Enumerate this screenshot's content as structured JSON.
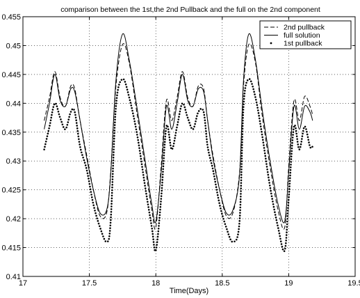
{
  "chart_data": {
    "type": "line",
    "title": "comparison between the 1st,the 2nd Pullback and the full on the 2nd component",
    "xlabel": "Time(Days)",
    "ylabel": "",
    "xlim": [
      17,
      19.5
    ],
    "ylim": [
      0.41,
      0.455
    ],
    "xticks": [
      "17",
      "17.5",
      "18",
      "18.5",
      "19",
      "19.5"
    ],
    "yticks": [
      "0.41",
      "0.415",
      "0.42",
      "0.425",
      "0.43",
      "0.435",
      "0.44",
      "0.445",
      "0.45",
      "0.455"
    ],
    "grid": true,
    "legend_position": "top-right",
    "series": [
      {
        "name": "2nd pullback",
        "style": "dashed",
        "x": [
          17.16,
          17.2,
          17.24,
          17.28,
          17.32,
          17.36,
          17.39,
          17.43,
          17.48,
          17.53,
          17.58,
          17.63,
          17.66,
          17.7,
          17.75,
          17.8,
          17.86,
          17.92,
          17.97,
          18.0,
          18.04,
          18.08,
          18.12,
          18.16,
          18.2,
          18.24,
          18.28,
          18.32,
          18.36,
          18.39,
          18.43,
          18.48,
          18.53,
          18.58,
          18.63,
          18.66,
          18.7,
          18.75,
          18.8,
          18.86,
          18.92,
          18.97,
          19.0,
          19.04,
          19.08,
          19.12,
          19.16,
          19.18
        ],
        "y": [
          0.437,
          0.441,
          0.4455,
          0.441,
          0.4395,
          0.443,
          0.4425,
          0.437,
          0.431,
          0.425,
          0.4205,
          0.421,
          0.428,
          0.443,
          0.4502,
          0.447,
          0.438,
          0.429,
          0.4215,
          0.4185,
          0.429,
          0.4405,
          0.437,
          0.441,
          0.4455,
          0.441,
          0.4395,
          0.443,
          0.4425,
          0.437,
          0.431,
          0.425,
          0.4205,
          0.421,
          0.428,
          0.443,
          0.4502,
          0.447,
          0.438,
          0.429,
          0.4215,
          0.4185,
          0.429,
          0.4405,
          0.437,
          0.4412,
          0.4395,
          0.438
        ]
      },
      {
        "name": "full solution",
        "style": "solid",
        "x": [
          17.16,
          17.2,
          17.24,
          17.28,
          17.32,
          17.36,
          17.39,
          17.43,
          17.48,
          17.53,
          17.58,
          17.63,
          17.66,
          17.7,
          17.75,
          17.8,
          17.86,
          17.92,
          17.97,
          18.0,
          18.04,
          18.08,
          18.12,
          18.16,
          18.2,
          18.24,
          18.28,
          18.32,
          18.36,
          18.39,
          18.43,
          18.48,
          18.53,
          18.58,
          18.63,
          18.66,
          18.7,
          18.75,
          18.8,
          18.86,
          18.92,
          18.97,
          19.0,
          19.04,
          19.08,
          19.12,
          19.16,
          19.18
        ],
        "y": [
          0.4355,
          0.44,
          0.445,
          0.4405,
          0.4395,
          0.4425,
          0.442,
          0.437,
          0.4305,
          0.425,
          0.421,
          0.4215,
          0.4275,
          0.444,
          0.452,
          0.4475,
          0.439,
          0.43,
          0.4225,
          0.4195,
          0.428,
          0.4395,
          0.4355,
          0.44,
          0.445,
          0.4405,
          0.4395,
          0.4425,
          0.442,
          0.437,
          0.4305,
          0.425,
          0.421,
          0.4215,
          0.4275,
          0.444,
          0.452,
          0.4475,
          0.439,
          0.43,
          0.4225,
          0.4195,
          0.428,
          0.4395,
          0.4355,
          0.4395,
          0.4385,
          0.437
        ]
      },
      {
        "name": "1st pullback",
        "style": "dotted-markers",
        "x": [
          17.16,
          17.2,
          17.24,
          17.28,
          17.32,
          17.36,
          17.39,
          17.43,
          17.48,
          17.53,
          17.58,
          17.63,
          17.66,
          17.7,
          17.75,
          17.8,
          17.86,
          17.92,
          17.97,
          18.0,
          18.04,
          18.08,
          18.12,
          18.16,
          18.2,
          18.24,
          18.28,
          18.32,
          18.36,
          18.39,
          18.43,
          18.48,
          18.53,
          18.58,
          18.63,
          18.66,
          18.7,
          18.75,
          18.8,
          18.86,
          18.92,
          18.97,
          19.0,
          19.04,
          19.08,
          19.12,
          19.16,
          19.18
        ],
        "y": [
          0.432,
          0.436,
          0.44,
          0.4375,
          0.4355,
          0.4385,
          0.4385,
          0.4325,
          0.4285,
          0.4225,
          0.4185,
          0.416,
          0.4195,
          0.4395,
          0.4442,
          0.441,
          0.4345,
          0.4255,
          0.4185,
          0.4145,
          0.4235,
          0.436,
          0.432,
          0.436,
          0.44,
          0.4375,
          0.4355,
          0.4385,
          0.4385,
          0.4325,
          0.4285,
          0.4225,
          0.4185,
          0.416,
          0.4195,
          0.4395,
          0.4442,
          0.441,
          0.4345,
          0.4255,
          0.4185,
          0.4145,
          0.4235,
          0.436,
          0.432,
          0.436,
          0.4325,
          0.4325
        ]
      }
    ]
  }
}
